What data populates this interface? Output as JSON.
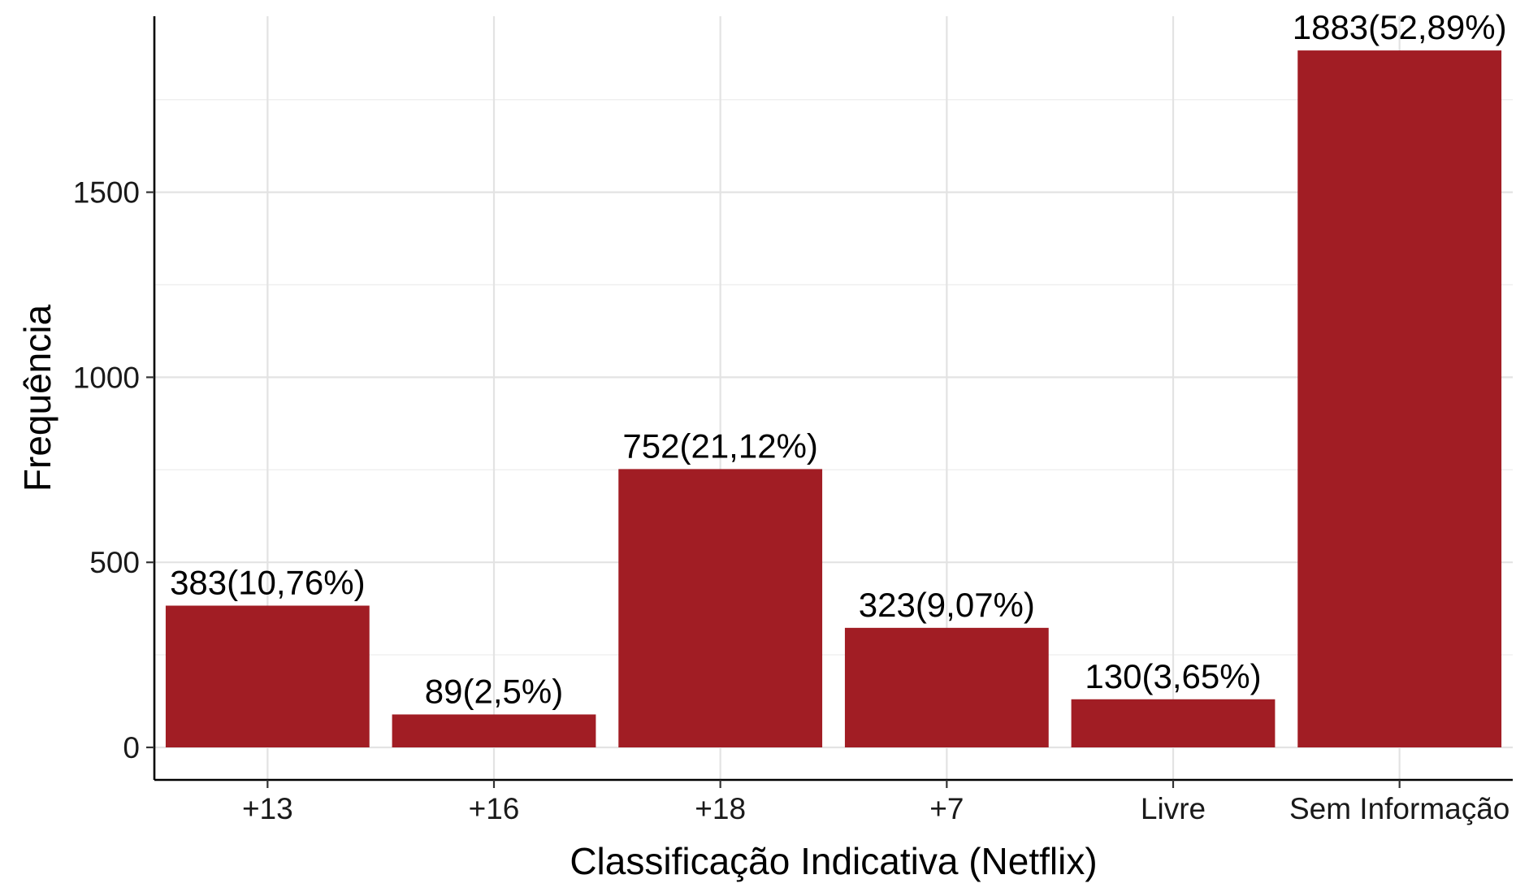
{
  "chart_data": {
    "type": "bar",
    "categories": [
      "+13",
      "+16",
      "+18",
      "+7",
      "Livre",
      "Sem Informação"
    ],
    "values": [
      383,
      89,
      752,
      323,
      130,
      1883
    ],
    "data_labels": [
      "383(10,76%)",
      "89(2,5%)",
      "752(21,12%)",
      "323(9,07%)",
      "130(3,65%)",
      "1883(52,89%)"
    ],
    "xlabel": "Classificação Indicativa (Netflix)",
    "ylabel": "Frequência",
    "y_ticks": [
      0,
      500,
      1000,
      1500
    ],
    "y_tick_labels": [
      "0",
      "500",
      "1000",
      "1500"
    ],
    "ylim": [
      -89,
      1983
    ],
    "grid": true,
    "bar_color": "#A11D24"
  }
}
